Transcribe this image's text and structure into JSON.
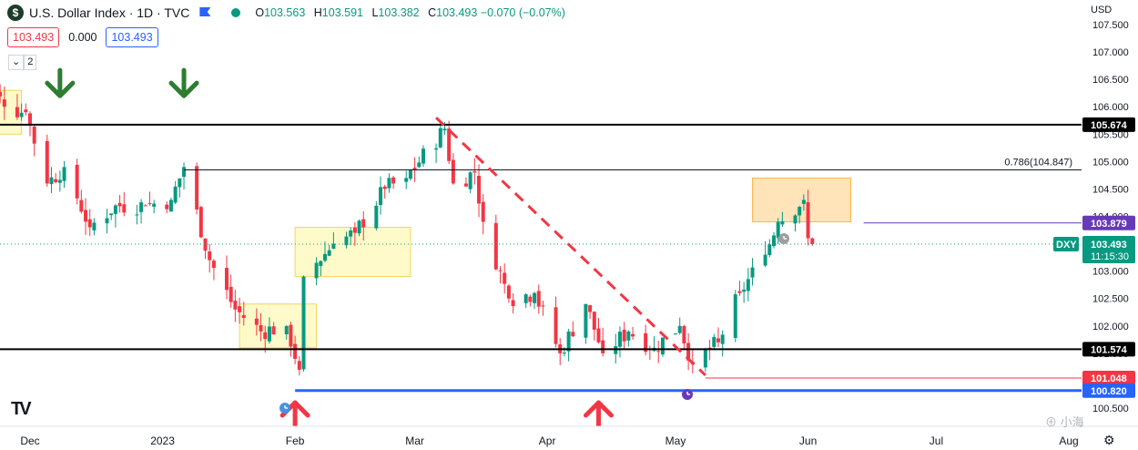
{
  "header": {
    "logo_letter": "$",
    "title": "U.S. Dollar Index · 1D · TVC",
    "ohlc": [
      {
        "k": "O",
        "v": "103.563"
      },
      {
        "k": "H",
        "v": "103.591"
      },
      {
        "k": "L",
        "v": "103.382"
      },
      {
        "k": "C",
        "v": "103.493 −0.070 (−0.07%)"
      }
    ],
    "price_box": "103.493",
    "spread": "0.000",
    "price_box_2": "103.493",
    "collapse_count": "2",
    "usd_label": "USD",
    "watermark": "小海"
  },
  "colors": {
    "up": "#089981",
    "down": "#f23645",
    "level": "#000000",
    "zone_yellow": "#fff59d",
    "zone_orange": "#ffcc80",
    "purple": "#673ab7",
    "blue": "#2962ff"
  },
  "chart_data": {
    "type": "candlestick",
    "symbol": "DXY",
    "ylim": [
      100.4,
      107.8
    ],
    "y_ticks": [
      "107.500",
      "107.000",
      "106.500",
      "106.000",
      "105.500",
      "105.000",
      "104.500",
      "104.000",
      "103.500",
      "103.000",
      "102.500",
      "102.000",
      "101.500",
      "101.000",
      "100.500"
    ],
    "x_ticks": [
      {
        "label": "Dec",
        "date": "2022-12-01"
      },
      {
        "label": "2023",
        "date": "2023-01-01"
      },
      {
        "label": "Feb",
        "date": "2023-02-01"
      },
      {
        "label": "Mar",
        "date": "2023-03-01"
      },
      {
        "label": "Apr",
        "date": "2023-04-01"
      },
      {
        "label": "May",
        "date": "2023-05-01"
      },
      {
        "label": "Jun",
        "date": "2023-06-01"
      },
      {
        "label": "Jul",
        "date": "2023-07-01"
      },
      {
        "label": "Aug",
        "date": "2023-08-01"
      }
    ],
    "anchors": [
      {
        "date": "2022-11-18",
        "close": 106.9
      },
      {
        "date": "2022-11-25",
        "close": 106.0
      },
      {
        "date": "2022-11-30",
        "close": 105.9
      },
      {
        "date": "2022-12-05",
        "close": 104.6
      },
      {
        "date": "2022-12-09",
        "close": 104.9
      },
      {
        "date": "2022-12-15",
        "close": 103.8
      },
      {
        "date": "2022-12-21",
        "close": 104.2
      },
      {
        "date": "2022-12-28",
        "close": 104.2
      },
      {
        "date": "2023-01-03",
        "close": 104.3
      },
      {
        "date": "2023-01-06",
        "close": 104.9
      },
      {
        "date": "2023-01-12",
        "close": 103.2
      },
      {
        "date": "2023-01-18",
        "close": 102.3
      },
      {
        "date": "2023-01-24",
        "close": 101.9
      },
      {
        "date": "2023-01-30",
        "close": 102.0
      },
      {
        "date": "2023-02-02",
        "close": 101.2
      },
      {
        "date": "2023-02-03",
        "close": 102.9
      },
      {
        "date": "2023-02-10",
        "close": 103.5
      },
      {
        "date": "2023-02-15",
        "close": 103.7
      },
      {
        "date": "2023-02-22",
        "close": 104.5
      },
      {
        "date": "2023-02-27",
        "close": 104.7
      },
      {
        "date": "2023-03-08",
        "close": 105.6
      },
      {
        "date": "2023-03-10",
        "close": 104.6
      },
      {
        "date": "2023-03-15",
        "close": 104.8
      },
      {
        "date": "2023-03-17",
        "close": 103.9
      },
      {
        "date": "2023-03-23",
        "close": 102.5
      },
      {
        "date": "2023-03-29",
        "close": 102.6
      },
      {
        "date": "2023-04-04",
        "close": 101.5
      },
      {
        "date": "2023-04-10",
        "close": 102.4
      },
      {
        "date": "2023-04-14",
        "close": 101.5
      },
      {
        "date": "2023-04-20",
        "close": 101.9
      },
      {
        "date": "2023-04-26",
        "close": 101.6
      },
      {
        "date": "2023-05-02",
        "close": 102.0
      },
      {
        "date": "2023-05-05",
        "close": 101.3
      },
      {
        "date": "2023-05-11",
        "close": 101.7
      },
      {
        "date": "2023-05-16",
        "close": 102.6
      },
      {
        "date": "2023-05-22",
        "close": 103.3
      },
      {
        "date": "2023-05-25",
        "close": 103.9
      },
      {
        "date": "2023-05-31",
        "close": 104.3
      },
      {
        "date": "2023-06-01",
        "close": 103.6
      },
      {
        "date": "2023-06-02",
        "close": 103.493
      }
    ],
    "levels": [
      {
        "price": 105.674,
        "label": "105.674",
        "color": "#000000",
        "lw": 2
      },
      {
        "price": 101.574,
        "label": "101.574",
        "color": "#000000",
        "lw": 2
      }
    ],
    "fib": {
      "price": 104.847,
      "label": "0.786(104.847)",
      "from": "2023-01-06",
      "to": "2023-07-04"
    },
    "hlines_tagged": [
      {
        "price": 103.879,
        "label": "103.879",
        "color": "#673ab7",
        "from": "2023-06-14"
      },
      {
        "price": 101.048,
        "label": "101.048",
        "color": "#f23645",
        "from": "2023-05-08"
      },
      {
        "price": 100.82,
        "label": "100.820",
        "color": "#2962ff",
        "from": "2023-02-01"
      }
    ],
    "current": {
      "price": 103.493,
      "label": "103.493",
      "symbol": "DXY",
      "countdown": "11:15:30"
    },
    "zones": [
      {
        "from": "2022-11-17",
        "to": "2022-11-29",
        "lo": 105.5,
        "hi": 106.3,
        "color": "yellow"
      },
      {
        "from": "2023-01-19",
        "to": "2023-02-06",
        "lo": 101.6,
        "hi": 102.4,
        "color": "yellow"
      },
      {
        "from": "2023-02-01",
        "to": "2023-02-28",
        "lo": 102.9,
        "hi": 103.8,
        "color": "yellow"
      },
      {
        "from": "2023-05-19",
        "to": "2023-06-11",
        "lo": 103.9,
        "hi": 104.7,
        "color": "orange"
      }
    ],
    "trendline": {
      "from": {
        "date": "2023-03-06",
        "price": 105.8
      },
      "to": {
        "date": "2023-05-08",
        "price": 101.1
      }
    },
    "arrows_down": [
      {
        "date": "2022-12-08",
        "price": 106.3
      },
      {
        "date": "2023-01-06",
        "price": 106.3
      }
    ],
    "arrows_up": [
      {
        "date": "2023-02-01",
        "price": 100.6
      },
      {
        "date": "2023-04-13",
        "price": 100.6
      }
    ]
  }
}
